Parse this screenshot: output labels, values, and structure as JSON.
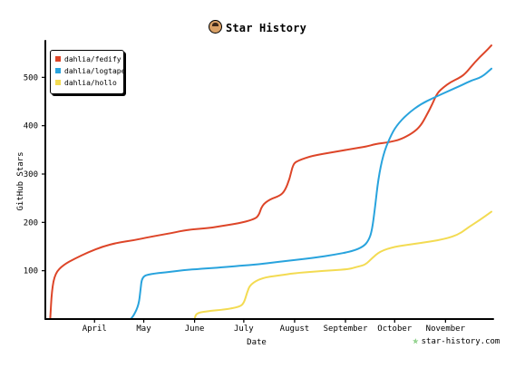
{
  "title": "Star History",
  "watermark": "star-history.com",
  "colors": {
    "fedify": "#dd4528",
    "logtape": "#28a3dd",
    "hollo": "#f3db52",
    "axis": "#000000"
  },
  "chart_data": {
    "type": "line",
    "title": "Star History",
    "xlabel": "Date",
    "ylabel": "GitHub Stars",
    "x_ticks": [
      "April",
      "May",
      "June",
      "July",
      "August",
      "September",
      "October",
      "November"
    ],
    "x_range": [
      "2024-03-05",
      "2024-11-19"
    ],
    "y_ticks": [
      100,
      200,
      300,
      400,
      500
    ],
    "ylim": [
      0,
      570
    ],
    "legend": "top-left",
    "grid": false,
    "series": [
      {
        "name": "dahlia/fedify",
        "color": "#dd4528",
        "points": [
          [
            "2024-03-05",
            0
          ],
          [
            "2024-03-06",
            60
          ],
          [
            "2024-03-08",
            95
          ],
          [
            "2024-03-13",
            112
          ],
          [
            "2024-03-20",
            125
          ],
          [
            "2024-03-28",
            138
          ],
          [
            "2024-04-06",
            150
          ],
          [
            "2024-04-15",
            158
          ],
          [
            "2024-04-25",
            163
          ],
          [
            "2024-05-05",
            170
          ],
          [
            "2024-05-18",
            178
          ],
          [
            "2024-05-28",
            185
          ],
          [
            "2024-06-10",
            188
          ],
          [
            "2024-06-18",
            193
          ],
          [
            "2024-06-28",
            198
          ],
          [
            "2024-07-06",
            205
          ],
          [
            "2024-07-10",
            212
          ],
          [
            "2024-07-12",
            235
          ],
          [
            "2024-07-17",
            248
          ],
          [
            "2024-07-23",
            255
          ],
          [
            "2024-07-26",
            265
          ],
          [
            "2024-07-29",
            290
          ],
          [
            "2024-07-31",
            320
          ],
          [
            "2024-08-03",
            328
          ],
          [
            "2024-08-12",
            338
          ],
          [
            "2024-08-24",
            345
          ],
          [
            "2024-09-05",
            352
          ],
          [
            "2024-09-14",
            357
          ],
          [
            "2024-09-19",
            362
          ],
          [
            "2024-09-28",
            366
          ],
          [
            "2024-10-05",
            372
          ],
          [
            "2024-10-12",
            385
          ],
          [
            "2024-10-17",
            400
          ],
          [
            "2024-10-21",
            425
          ],
          [
            "2024-10-24",
            445
          ],
          [
            "2024-10-27",
            468
          ],
          [
            "2024-10-31",
            480
          ],
          [
            "2024-11-04",
            490
          ],
          [
            "2024-11-09",
            498
          ],
          [
            "2024-11-13",
            507
          ],
          [
            "2024-11-19",
            532
          ],
          [
            "2024-11-25",
            552
          ],
          [
            "2024-11-29",
            566
          ]
        ]
      },
      {
        "name": "dahlia/logtape",
        "color": "#28a3dd",
        "points": [
          [
            "2024-04-23",
            0
          ],
          [
            "2024-04-25",
            8
          ],
          [
            "2024-04-28",
            30
          ],
          [
            "2024-04-29",
            60
          ],
          [
            "2024-04-30",
            88
          ],
          [
            "2024-05-05",
            93
          ],
          [
            "2024-05-15",
            97
          ],
          [
            "2024-05-25",
            101
          ],
          [
            "2024-06-05",
            104
          ],
          [
            "2024-06-18",
            107
          ],
          [
            "2024-06-28",
            110
          ],
          [
            "2024-07-10",
            113
          ],
          [
            "2024-07-21",
            118
          ],
          [
            "2024-08-01",
            122
          ],
          [
            "2024-08-13",
            127
          ],
          [
            "2024-08-25",
            133
          ],
          [
            "2024-09-05",
            140
          ],
          [
            "2024-09-12",
            150
          ],
          [
            "2024-09-15",
            162
          ],
          [
            "2024-09-17",
            180
          ],
          [
            "2024-09-19",
            230
          ],
          [
            "2024-09-21",
            290
          ],
          [
            "2024-09-24",
            340
          ],
          [
            "2024-09-28",
            375
          ],
          [
            "2024-10-02",
            400
          ],
          [
            "2024-10-09",
            425
          ],
          [
            "2024-10-17",
            445
          ],
          [
            "2024-10-25",
            458
          ],
          [
            "2024-11-03",
            472
          ],
          [
            "2024-11-11",
            484
          ],
          [
            "2024-11-17",
            494
          ],
          [
            "2024-11-23",
            500
          ],
          [
            "2024-11-29",
            518
          ]
        ]
      },
      {
        "name": "dahlia/hollo",
        "color": "#f3db52",
        "points": [
          [
            "2024-06-01",
            0
          ],
          [
            "2024-06-02",
            12
          ],
          [
            "2024-06-08",
            16
          ],
          [
            "2024-06-20",
            20
          ],
          [
            "2024-06-28",
            25
          ],
          [
            "2024-07-01",
            32
          ],
          [
            "2024-07-03",
            55
          ],
          [
            "2024-07-05",
            72
          ],
          [
            "2024-07-12",
            85
          ],
          [
            "2024-07-22",
            90
          ],
          [
            "2024-08-01",
            95
          ],
          [
            "2024-08-13",
            98
          ],
          [
            "2024-08-24",
            101
          ],
          [
            "2024-09-03",
            103
          ],
          [
            "2024-09-08",
            108
          ],
          [
            "2024-09-13",
            112
          ],
          [
            "2024-09-17",
            125
          ],
          [
            "2024-09-22",
            140
          ],
          [
            "2024-10-01",
            150
          ],
          [
            "2024-10-12",
            155
          ],
          [
            "2024-10-22",
            160
          ],
          [
            "2024-11-01",
            166
          ],
          [
            "2024-11-09",
            175
          ],
          [
            "2024-11-15",
            190
          ],
          [
            "2024-11-22",
            205
          ],
          [
            "2024-11-29",
            222
          ]
        ]
      }
    ]
  }
}
